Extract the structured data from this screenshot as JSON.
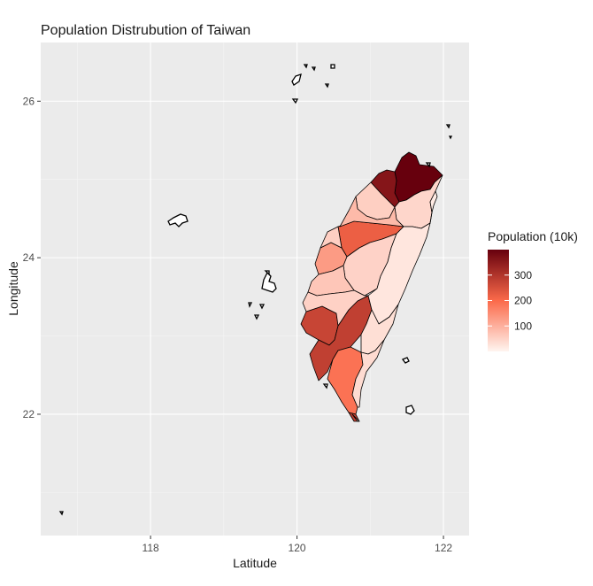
{
  "chart_data": {
    "type": "choropleth",
    "title": "Population Distrubution of Taiwan",
    "xlabel": "Latitude",
    "ylabel": "Longitude",
    "xlim": [
      116.5,
      122.35
    ],
    "ylim": [
      20.45,
      26.75
    ],
    "x_ticks": [
      118,
      120,
      122
    ],
    "y_ticks": [
      22,
      24,
      26
    ],
    "grid": true,
    "legend": {
      "title": "Population (10k)",
      "ticks": [
        100,
        200,
        300
      ],
      "range": [
        0,
        400
      ],
      "low_color": "#fff5f0",
      "mid_color": "#fb6a4a",
      "high_color": "#67000d",
      "placement": "right"
    },
    "regions": [
      {
        "population": 400
      },
      {
        "population": 360
      },
      {
        "population": 220
      },
      {
        "population": 270
      },
      {
        "population": 45
      },
      {
        "population": 55
      },
      {
        "population": 280
      },
      {
        "population": 130
      },
      {
        "population": 50
      },
      {
        "population": 68
      },
      {
        "population": 52
      },
      {
        "population": 188
      },
      {
        "population": 278
      },
      {
        "population": 85
      },
      {
        "population": 22
      },
      {
        "population": 32
      },
      {
        "population": 37
      },
      {
        "population": 54
      },
      {
        "population": 15
      },
      {
        "population": 10
      }
    ]
  },
  "colors": {
    "panel": "#ebebeb",
    "grid_major": "#ffffff",
    "grid_minor": "#f5f5f5"
  }
}
